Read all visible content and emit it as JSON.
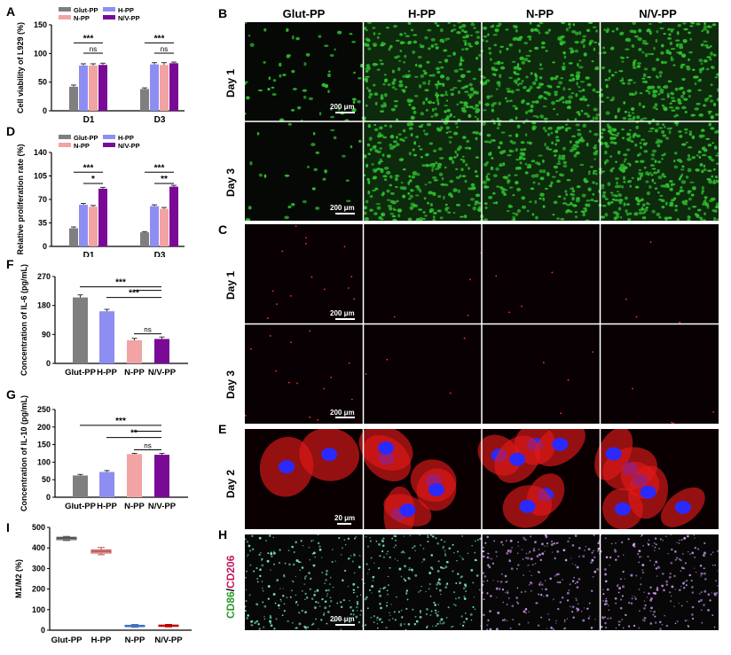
{
  "panels": {
    "A": "A",
    "B": "B",
    "C": "C",
    "D": "D",
    "E": "E",
    "F": "F",
    "G": "G",
    "H": "H",
    "I": "I"
  },
  "microscopy": {
    "columns": [
      "Glut-PP",
      "H-PP",
      "N-PP",
      "N/V-PP"
    ],
    "rows": {
      "day1": "Day 1",
      "day3": "Day 3",
      "day2": "Day 2"
    },
    "scale_200": "200 μm",
    "scale_20": "20 μm",
    "stain_cd86": "CD86",
    "stain_slash": "/",
    "stain_cd206": "CD206",
    "colors": {
      "live": "#2fbf2f",
      "dead": "#ff3030",
      "actin": "#e01818",
      "nucleus": "#2a2aff",
      "cd86": "#7ff0c8",
      "cd206": "#d9a0ff"
    }
  },
  "chart_data": [
    {
      "id": "A",
      "type": "bar",
      "ylabel": "Cell viability of L929 (%)",
      "ylim": [
        0,
        150
      ],
      "yticks": [
        0,
        50,
        100,
        150
      ],
      "categories": [
        "D1",
        "D3"
      ],
      "series": [
        {
          "name": "Glut-PP",
          "color": "#7f7f7f",
          "values": [
            42,
            38
          ],
          "err": [
            3,
            2
          ]
        },
        {
          "name": "H-PP",
          "color": "#8e8ef2",
          "values": [
            79,
            81
          ],
          "err": [
            3,
            3
          ]
        },
        {
          "name": "N-PP",
          "color": "#f2a3a3",
          "values": [
            79,
            80
          ],
          "err": [
            3,
            4
          ]
        },
        {
          "name": "N/V-PP",
          "color": "#7a0a96",
          "values": [
            80,
            83
          ],
          "err": [
            3,
            2
          ]
        }
      ],
      "sig": [
        "***",
        "ns",
        "***",
        "ns"
      ]
    },
    {
      "id": "D",
      "type": "bar",
      "ylabel": "Relative proliferation rate (%)",
      "ylim": [
        0,
        140
      ],
      "yticks": [
        0,
        35,
        70,
        105,
        140
      ],
      "categories": [
        "D1",
        "D3"
      ],
      "series": [
        {
          "name": "Glut-PP",
          "color": "#7f7f7f",
          "values": [
            27,
            21
          ],
          "err": [
            2,
            1
          ]
        },
        {
          "name": "H-PP",
          "color": "#8e8ef2",
          "values": [
            62,
            60
          ],
          "err": [
            2,
            2
          ]
        },
        {
          "name": "N-PP",
          "color": "#f2a3a3",
          "values": [
            59,
            56
          ],
          "err": [
            2,
            2
          ]
        },
        {
          "name": "N/V-PP",
          "color": "#7a0a96",
          "values": [
            86,
            89
          ],
          "err": [
            2,
            2
          ]
        }
      ],
      "sig": [
        "***",
        "*",
        "***",
        "**"
      ]
    },
    {
      "id": "F",
      "type": "bar",
      "ylabel": "Concentration of IL-6 (pg/mL)",
      "ylim": [
        0,
        270
      ],
      "yticks": [
        0,
        90,
        180,
        270
      ],
      "categories": [
        "Glut-PP",
        "H-PP",
        "N-PP",
        "N/V-PP"
      ],
      "colors": [
        "#7f7f7f",
        "#8e8ef2",
        "#f2a3a3",
        "#7a0a96"
      ],
      "values": [
        205,
        162,
        72,
        76
      ],
      "err": [
        8,
        6,
        6,
        6
      ],
      "sig": [
        "***",
        "***",
        "ns"
      ]
    },
    {
      "id": "G",
      "type": "bar",
      "ylabel": "Concentration of IL-10 (pg/mL)",
      "ylim": [
        0,
        250
      ],
      "yticks": [
        0,
        50,
        100,
        150,
        200,
        250
      ],
      "categories": [
        "Glut-PP",
        "H-PP",
        "N-PP",
        "N/V-PP"
      ],
      "colors": [
        "#7f7f7f",
        "#8e8ef2",
        "#f2a3a3",
        "#7a0a96"
      ],
      "values": [
        62,
        72,
        123,
        121
      ],
      "err": [
        3,
        4,
        2,
        4
      ],
      "sig": [
        "***",
        "**",
        "ns"
      ]
    },
    {
      "id": "I",
      "type": "box",
      "ylabel": "M1/M2 (%)",
      "ylim": [
        0,
        500
      ],
      "yticks": [
        0,
        100,
        200,
        300,
        400,
        500
      ],
      "categories": [
        "Glut-PP",
        "H-PP",
        "N-PP",
        "N/V-PP"
      ],
      "colors": [
        "#555555",
        "#c0504d",
        "#4472c4",
        "#c00000"
      ],
      "median": [
        447,
        383,
        20,
        22
      ],
      "q1": [
        440,
        375,
        17,
        19
      ],
      "q3": [
        452,
        390,
        24,
        25
      ],
      "min": [
        436,
        367,
        14,
        16
      ],
      "max": [
        456,
        402,
        28,
        28
      ]
    }
  ]
}
